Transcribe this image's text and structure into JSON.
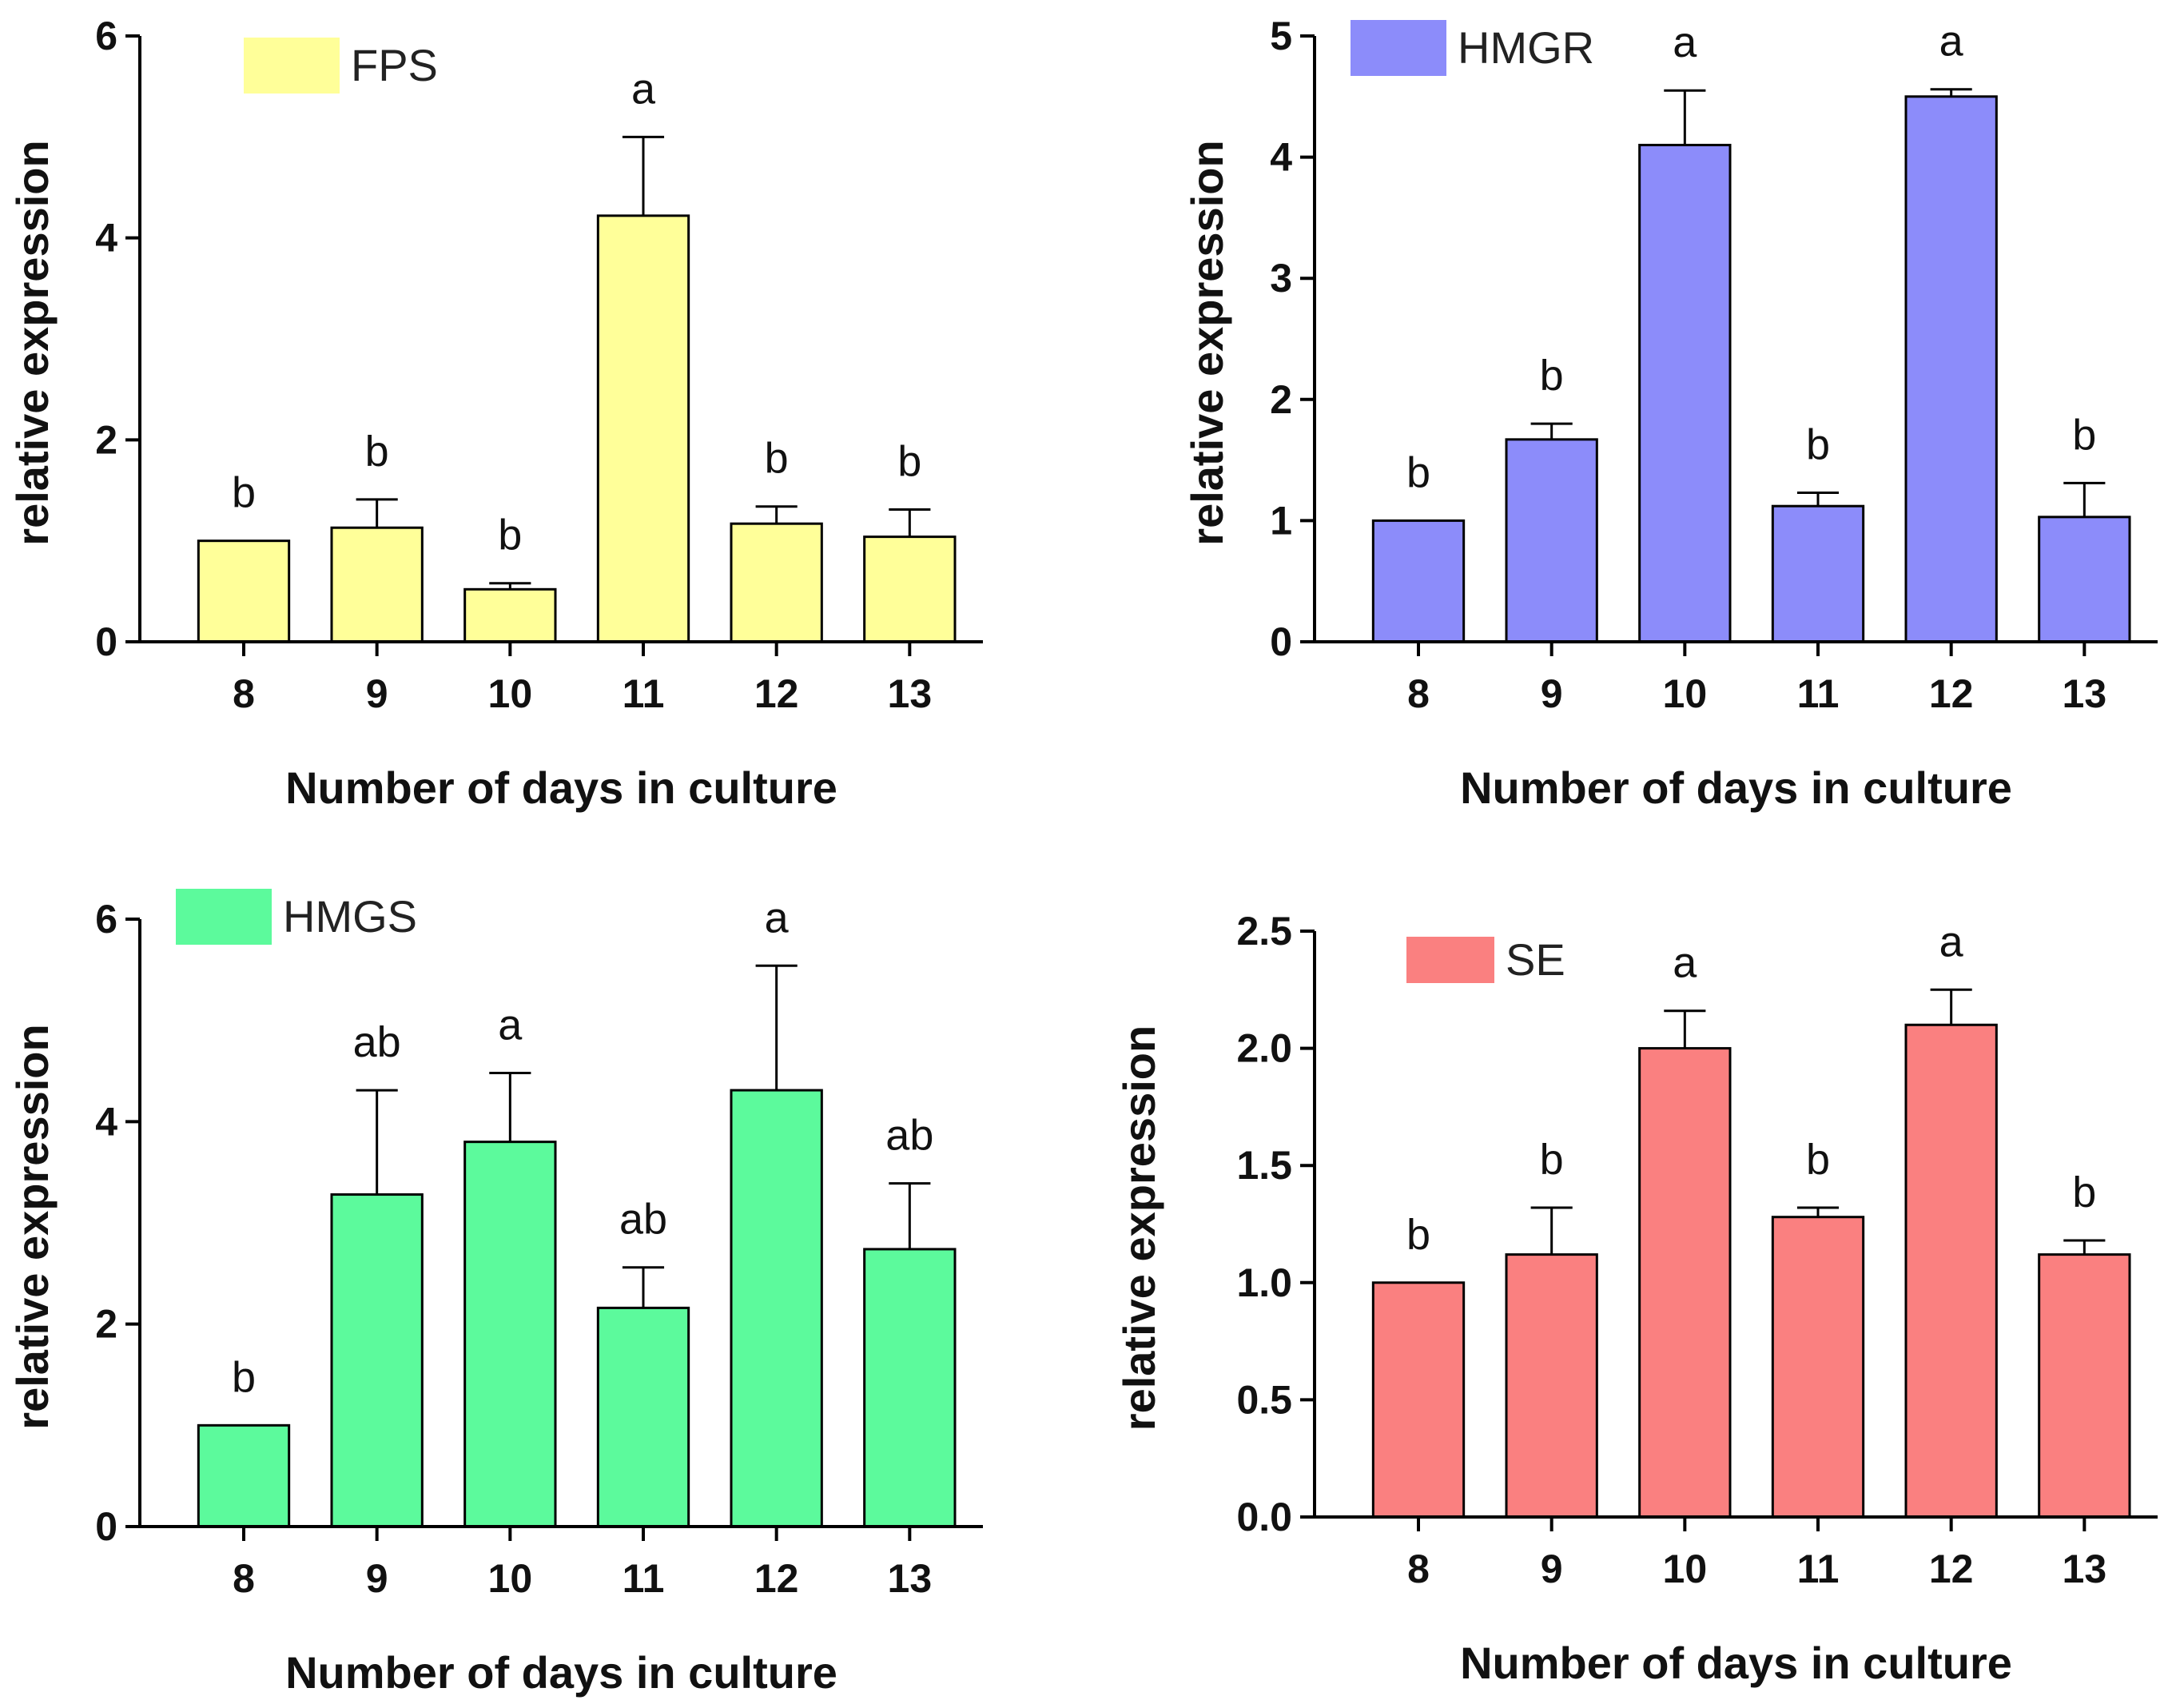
{
  "chart_data": [
    {
      "type": "bar",
      "title": "",
      "legend": "FPS",
      "color": "#ffff99",
      "categories": [
        "8",
        "9",
        "10",
        "11",
        "12",
        "13"
      ],
      "values": [
        1.0,
        1.13,
        0.52,
        4.22,
        1.17,
        1.04
      ],
      "errors": [
        0.0,
        0.28,
        0.06,
        0.78,
        0.17,
        0.27
      ],
      "significance": [
        "b",
        "b",
        "b",
        "a",
        "b",
        "b"
      ],
      "ylim": [
        0,
        6
      ],
      "yticks": [
        "0",
        "2",
        "4",
        "6"
      ],
      "ytick_values": [
        0,
        2,
        4,
        6
      ],
      "xlabel": "Number of days in culture",
      "ylabel": "relative expression"
    },
    {
      "type": "bar",
      "title": "",
      "legend": "HMGR",
      "color": "#8c8cfa",
      "categories": [
        "8",
        "9",
        "10",
        "11",
        "12",
        "13"
      ],
      "values": [
        1.0,
        1.67,
        4.1,
        1.12,
        4.5,
        1.03
      ],
      "errors": [
        0.0,
        0.13,
        0.45,
        0.11,
        0.06,
        0.28
      ],
      "significance": [
        "b",
        "b",
        "a",
        "b",
        "a",
        "b"
      ],
      "ylim": [
        0,
        5
      ],
      "yticks": [
        "0",
        "1",
        "2",
        "3",
        "4",
        "5"
      ],
      "ytick_values": [
        0,
        1,
        2,
        3,
        4,
        5
      ],
      "xlabel": "Number of days in culture",
      "ylabel": "relative expression"
    },
    {
      "type": "bar",
      "title": "",
      "legend": "HMGS",
      "color": "#5cfa9c",
      "categories": [
        "8",
        "9",
        "10",
        "11",
        "12",
        "13"
      ],
      "values": [
        1.0,
        3.28,
        3.8,
        2.16,
        4.31,
        2.74
      ],
      "errors": [
        0.0,
        1.03,
        0.68,
        0.4,
        1.23,
        0.65
      ],
      "significance": [
        "b",
        "ab",
        "a",
        "ab",
        "a",
        "ab"
      ],
      "ylim": [
        0,
        6
      ],
      "yticks": [
        "0",
        "2",
        "4",
        "6"
      ],
      "ytick_values": [
        0,
        2,
        4,
        6
      ],
      "xlabel": "Number of days in culture",
      "ylabel": "relative expression"
    },
    {
      "type": "bar",
      "title": "",
      "legend": "SE",
      "color": "#fa8080",
      "categories": [
        "8",
        "9",
        "10",
        "11",
        "12",
        "13"
      ],
      "values": [
        1.0,
        1.12,
        2.0,
        1.28,
        2.1,
        1.12
      ],
      "errors": [
        0.0,
        0.2,
        0.16,
        0.04,
        0.15,
        0.06
      ],
      "significance": [
        "b",
        "b",
        "a",
        "b",
        "a",
        "b"
      ],
      "ylim": [
        0,
        2.5
      ],
      "yticks": [
        "0.0",
        "0.5",
        "1.0",
        "1.5",
        "2.0",
        "2.5"
      ],
      "ytick_values": [
        0,
        0.5,
        1.0,
        1.5,
        2.0,
        2.5
      ],
      "xlabel": "Number of days in culture",
      "ylabel": "relative expression"
    }
  ]
}
